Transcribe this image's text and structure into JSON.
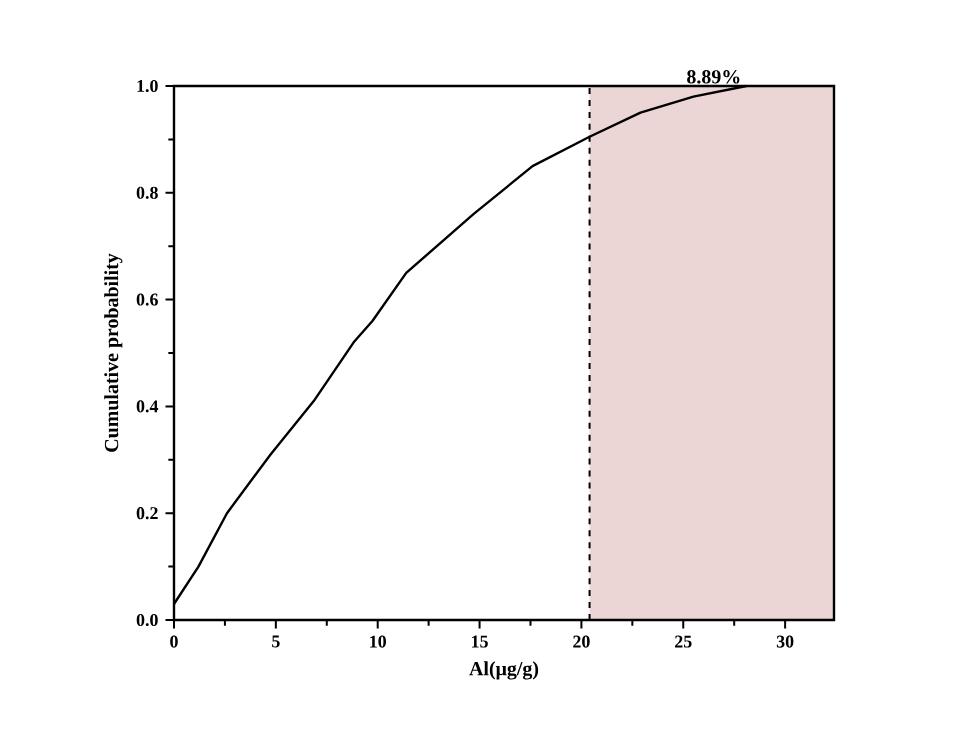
{
  "chart_data": {
    "type": "line",
    "xlabel": "Al(μg/g)",
    "ylabel": "Cumulative probability",
    "x": [
      0,
      1.2,
      2.6,
      4.74,
      6.86,
      8.82,
      9.74,
      11.4,
      14.7,
      17.6,
      20.4,
      22.9,
      25.5,
      28.1
    ],
    "series": [
      {
        "color": "#000000",
        "values": [
          0.03,
          0.1,
          0.2,
          0.31,
          0.41,
          0.52,
          0.56,
          0.65,
          0.76,
          0.85,
          0.905,
          0.95,
          0.98,
          1.0
        ]
      }
    ],
    "xlim": [
      0,
      32.4
    ],
    "ylim": [
      0,
      1.0
    ],
    "xticks": [
      0,
      5,
      10,
      15,
      20,
      25,
      30
    ],
    "yticks": [
      {
        "value": 0,
        "label": "0.0"
      },
      0.2,
      0.4,
      0.6,
      0.8,
      {
        "value": 1.0,
        "label": "1.0"
      }
    ],
    "ref_lines": [
      {
        "axis": "x",
        "value": 20.4,
        "line_style": "dashed",
        "color": "#000000"
      }
    ],
    "bands": [
      {
        "axis": "x",
        "from": 20.4,
        "to": 32.4,
        "color": "#ecd5d5"
      }
    ],
    "annotations": [
      {
        "text": "8.89%",
        "x": 26.5,
        "y": 1.0
      }
    ],
    "grid": false,
    "marker": "none",
    "line_style": "solid"
  }
}
